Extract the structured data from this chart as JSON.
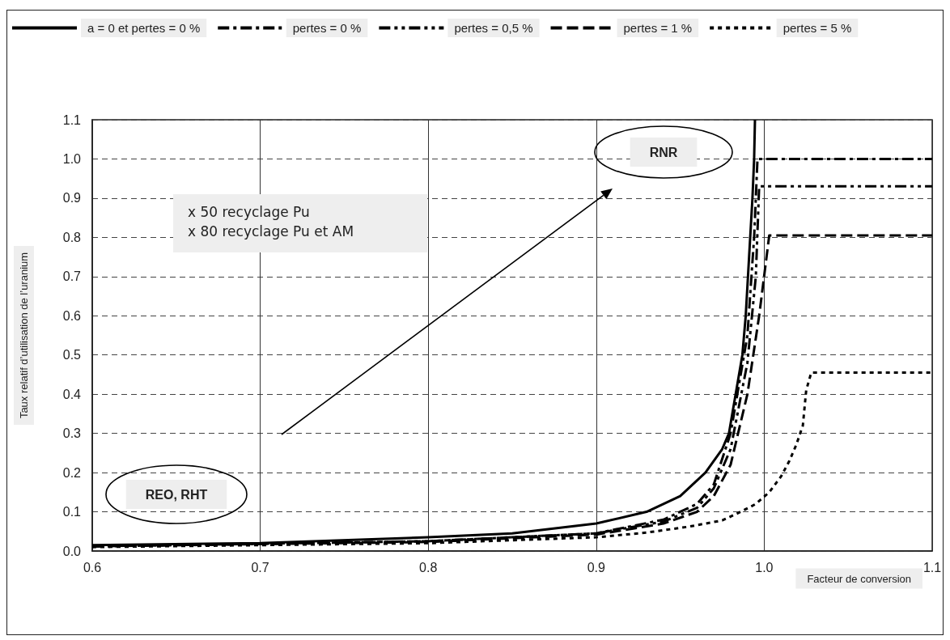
{
  "chart_data": {
    "type": "line",
    "xlabel": "Facteur de conversion",
    "ylabel": "Taux relatif d’utilisation de l’uranium",
    "xlim": [
      0.6,
      1.1
    ],
    "xticks": [
      0.6,
      0.7,
      0.8,
      0.9,
      {
        "value": 1,
        "label": "1.0"
      },
      1.1
    ],
    "ylim": [
      0,
      1.1
    ],
    "yticks": [
      {
        "value": 0,
        "label": "0.0"
      },
      0.1,
      0.2,
      0.3,
      0.4,
      0.5,
      0.6,
      0.7,
      0.8,
      0.9,
      {
        "value": 1,
        "label": "1.0"
      },
      1.1
    ],
    "grid": true,
    "legend": "top",
    "marker": "none",
    "annotations": [
      "x 50 recyclage Pu\nx 80 recyclage Pu et AM",
      "RNR",
      "REO, RHT"
    ],
    "series": [
      {
        "name": "a = 0 et pertes = 0 %",
        "color": "#000000",
        "line_style": "solid",
        "x": [
          0.6,
          0.7,
          0.8,
          0.85,
          0.9,
          0.93,
          0.95,
          0.965,
          0.975,
          0.979,
          0.983,
          0.987,
          0.989,
          0.991,
          0.993,
          0.994,
          0.9945
        ],
        "values": [
          0.015,
          0.02,
          0.035,
          0.045,
          0.07,
          0.1,
          0.14,
          0.2,
          0.26,
          0.3,
          0.4,
          0.5,
          0.6,
          0.75,
          0.9,
          1.0,
          1.1
        ]
      },
      {
        "name": "pertes = 0 %",
        "color": "#000000",
        "line_style": "dashdot",
        "x": [
          0.6,
          0.8,
          0.9,
          0.94,
          0.96,
          0.97,
          0.98,
          0.99,
          0.994,
          0.996,
          1.1
        ],
        "values": [
          0.012,
          0.025,
          0.045,
          0.08,
          0.12,
          0.17,
          0.3,
          0.55,
          0.8,
          1.0,
          1.0
        ]
      },
      {
        "name": "pertes = 0,5 %",
        "color": "#000000",
        "line_style": "dashdotdot",
        "x": [
          0.6,
          0.8,
          0.9,
          0.94,
          0.96,
          0.97,
          0.98,
          0.99,
          0.995,
          0.997,
          1.1
        ],
        "values": [
          0.012,
          0.025,
          0.045,
          0.075,
          0.11,
          0.16,
          0.26,
          0.48,
          0.7,
          0.93,
          0.93
        ]
      },
      {
        "name": "pertes = 1 %",
        "color": "#000000",
        "line_style": "dashed",
        "x": [
          0.6,
          0.8,
          0.9,
          0.94,
          0.96,
          0.97,
          0.98,
          0.99,
          0.997,
          1.003,
          1.1
        ],
        "values": [
          0.012,
          0.023,
          0.042,
          0.07,
          0.1,
          0.14,
          0.22,
          0.4,
          0.6,
          0.805,
          0.805
        ]
      },
      {
        "name": "pertes = 5 %",
        "color": "#000000",
        "line_style": "dotted",
        "x": [
          0.6,
          0.7,
          0.8,
          0.9,
          0.93,
          0.955,
          0.975,
          0.986,
          0.995,
          1.003,
          1.01,
          1.015,
          1.019,
          1.023,
          1.025,
          1.028,
          1.1
        ],
        "values": [
          0.01,
          0.015,
          0.02,
          0.035,
          0.047,
          0.062,
          0.078,
          0.1,
          0.12,
          0.15,
          0.19,
          0.23,
          0.27,
          0.32,
          0.41,
          0.455,
          0.455
        ]
      }
    ]
  }
}
